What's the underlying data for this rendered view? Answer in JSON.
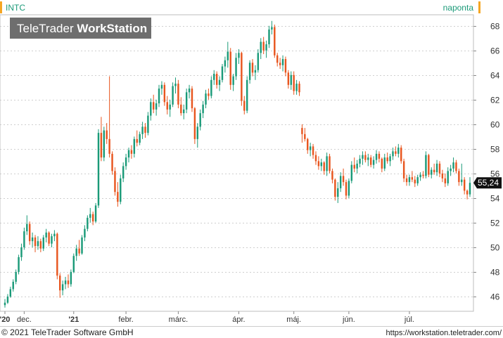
{
  "header": {
    "symbol": "INTC",
    "interval": "naponta",
    "watermark_light": "TeleTrader ",
    "watermark_bold": "WorkStation"
  },
  "footer": {
    "copyright": "© 2021 TeleTrader Software GmbH",
    "url": "https://workstation.teletrader.com/"
  },
  "colors": {
    "up": "#1a9a78",
    "down": "#e8551e",
    "accent": "#f5a623",
    "grid": "#cfcfcf",
    "price_tag_bg": "#111111"
  },
  "chart_data": {
    "type": "candlestick",
    "y_ticks": [
      46,
      48,
      50,
      52,
      54,
      56,
      58,
      60,
      62,
      64,
      66,
      68
    ],
    "ylim": [
      44.8,
      68.9
    ],
    "last_price": 55.24,
    "last_price_label": "55,24",
    "x_labels": [
      {
        "label": "'20",
        "bold": true,
        "index": 0
      },
      {
        "label": "dec.",
        "bold": false,
        "index": 7
      },
      {
        "label": "'21",
        "bold": true,
        "index": 25
      },
      {
        "label": "febr.",
        "bold": false,
        "index": 44
      },
      {
        "label": "márc.",
        "bold": false,
        "index": 63
      },
      {
        "label": "ápr.",
        "bold": false,
        "index": 85
      },
      {
        "label": "máj.",
        "bold": false,
        "index": 105
      },
      {
        "label": "jún.",
        "bold": false,
        "index": 125
      },
      {
        "label": "júl.",
        "bold": false,
        "index": 147
      }
    ],
    "candles": [
      [
        45.3,
        45.8,
        45.1,
        45.5
      ],
      [
        45.5,
        46.2,
        45.4,
        46.0
      ],
      [
        46.0,
        46.8,
        45.9,
        46.6
      ],
      [
        46.6,
        47.4,
        46.4,
        47.2
      ],
      [
        47.2,
        48.2,
        47.0,
        48.0
      ],
      [
        48.0,
        49.4,
        47.8,
        49.2
      ],
      [
        49.2,
        50.3,
        48.9,
        50.0
      ],
      [
        50.0,
        51.6,
        49.8,
        51.3
      ],
      [
        51.3,
        52.6,
        51.0,
        51.9
      ],
      [
        51.9,
        52.1,
        50.2,
        50.5
      ],
      [
        50.5,
        51.2,
        50.0,
        50.8
      ],
      [
        50.8,
        51.0,
        49.6,
        50.1
      ],
      [
        50.1,
        50.9,
        49.8,
        50.5
      ],
      [
        50.5,
        50.7,
        49.6,
        49.9
      ],
      [
        49.9,
        51.0,
        49.7,
        50.8
      ],
      [
        50.8,
        51.5,
        50.4,
        51.2
      ],
      [
        51.2,
        51.3,
        50.1,
        50.3
      ],
      [
        50.3,
        51.1,
        50.0,
        50.9
      ],
      [
        50.9,
        51.4,
        50.5,
        51.1
      ],
      [
        51.1,
        51.2,
        47.4,
        47.7
      ],
      [
        47.7,
        47.9,
        45.9,
        46.5
      ],
      [
        46.5,
        47.3,
        46.1,
        47.0
      ],
      [
        47.0,
        47.6,
        46.6,
        47.3
      ],
      [
        47.3,
        47.8,
        46.7,
        47.0
      ],
      [
        47.0,
        48.2,
        46.8,
        48.0
      ],
      [
        48.0,
        49.5,
        47.9,
        49.3
      ],
      [
        49.3,
        50.2,
        48.9,
        49.9
      ],
      [
        49.9,
        50.6,
        49.3,
        49.5
      ],
      [
        49.5,
        51.0,
        49.4,
        50.8
      ],
      [
        50.8,
        51.8,
        50.5,
        51.5
      ],
      [
        51.5,
        52.6,
        51.3,
        52.4
      ],
      [
        52.4,
        53.2,
        52.0,
        52.7
      ],
      [
        52.7,
        52.9,
        51.8,
        52.1
      ],
      [
        52.1,
        53.6,
        52.0,
        53.4
      ],
      [
        53.4,
        59.6,
        53.2,
        59.3
      ],
      [
        59.3,
        60.6,
        57.0,
        57.3
      ],
      [
        57.3,
        59.8,
        57.0,
        59.5
      ],
      [
        59.5,
        60.1,
        58.4,
        58.8
      ],
      [
        58.8,
        63.9,
        57.3,
        57.6
      ],
      [
        57.6,
        57.8,
        55.9,
        56.2
      ],
      [
        56.2,
        56.5,
        54.2,
        54.5
      ],
      [
        54.5,
        55.3,
        53.3,
        53.7
      ],
      [
        53.7,
        55.9,
        53.5,
        55.6
      ],
      [
        55.6,
        56.9,
        55.3,
        56.6
      ],
      [
        56.6,
        57.6,
        56.3,
        57.3
      ],
      [
        57.3,
        58.1,
        56.9,
        57.9
      ],
      [
        57.9,
        58.3,
        57.2,
        57.6
      ],
      [
        57.6,
        59.0,
        57.3,
        58.8
      ],
      [
        58.8,
        59.5,
        58.2,
        58.5
      ],
      [
        58.5,
        59.4,
        58.3,
        59.2
      ],
      [
        59.2,
        60.2,
        58.8,
        59.8
      ],
      [
        59.8,
        60.1,
        58.9,
        59.3
      ],
      [
        59.3,
        61.0,
        59.1,
        60.7
      ],
      [
        60.7,
        62.1,
        60.3,
        61.8
      ],
      [
        61.8,
        62.4,
        60.9,
        61.2
      ],
      [
        61.2,
        62.0,
        60.7,
        61.7
      ],
      [
        61.7,
        63.2,
        61.4,
        62.9
      ],
      [
        62.9,
        63.5,
        62.4,
        63.2
      ],
      [
        63.2,
        63.4,
        61.5,
        61.8
      ],
      [
        61.8,
        62.3,
        60.8,
        61.2
      ],
      [
        61.2,
        62.0,
        60.6,
        61.6
      ],
      [
        61.6,
        63.4,
        61.4,
        63.1
      ],
      [
        63.1,
        63.8,
        62.5,
        63.3
      ],
      [
        63.3,
        63.6,
        61.3,
        61.6
      ],
      [
        61.6,
        62.2,
        60.7,
        60.9
      ],
      [
        60.9,
        61.6,
        60.4,
        61.2
      ],
      [
        61.2,
        62.9,
        60.9,
        62.6
      ],
      [
        62.6,
        63.2,
        62.1,
        62.9
      ],
      [
        62.9,
        63.1,
        61.0,
        61.3
      ],
      [
        61.3,
        61.4,
        58.4,
        58.8
      ],
      [
        58.8,
        60.1,
        58.1,
        59.8
      ],
      [
        59.8,
        61.2,
        59.5,
        60.9
      ],
      [
        60.9,
        61.9,
        60.5,
        61.6
      ],
      [
        61.6,
        62.8,
        61.3,
        62.5
      ],
      [
        62.5,
        62.9,
        62.0,
        62.3
      ],
      [
        62.3,
        63.9,
        62.1,
        63.6
      ],
      [
        63.6,
        64.4,
        63.2,
        64.1
      ],
      [
        64.1,
        64.3,
        62.9,
        63.2
      ],
      [
        63.2,
        63.9,
        62.7,
        63.6
      ],
      [
        63.6,
        64.9,
        63.4,
        64.7
      ],
      [
        64.7,
        65.5,
        64.2,
        65.2
      ],
      [
        65.2,
        66.7,
        64.6,
        65.9
      ],
      [
        65.9,
        66.2,
        62.8,
        63.2
      ],
      [
        63.2,
        64.1,
        62.7,
        63.9
      ],
      [
        63.9,
        65.8,
        63.6,
        65.4
      ],
      [
        65.4,
        66.1,
        64.9,
        65.8
      ],
      [
        65.8,
        65.9,
        61.5,
        61.9
      ],
      [
        61.9,
        62.3,
        60.8,
        61.1
      ],
      [
        61.1,
        63.9,
        60.9,
        63.6
      ],
      [
        63.6,
        65.2,
        63.3,
        65.0
      ],
      [
        65.0,
        65.3,
        63.9,
        64.2
      ],
      [
        64.2,
        64.8,
        63.6,
        64.4
      ],
      [
        64.4,
        66.1,
        64.2,
        65.8
      ],
      [
        65.8,
        67.0,
        65.3,
        66.7
      ],
      [
        66.7,
        67.1,
        65.7,
        66.0
      ],
      [
        66.0,
        66.8,
        65.4,
        66.5
      ],
      [
        66.5,
        68.0,
        66.2,
        67.7
      ],
      [
        67.7,
        68.4,
        67.3,
        67.9
      ],
      [
        67.9,
        68.1,
        65.4,
        65.6
      ],
      [
        65.6,
        65.8,
        64.7,
        65.0
      ],
      [
        65.0,
        65.4,
        64.5,
        64.8
      ],
      [
        64.8,
        65.6,
        64.3,
        65.3
      ],
      [
        65.3,
        65.5,
        63.9,
        64.2
      ],
      [
        64.2,
        64.4,
        62.9,
        63.2
      ],
      [
        63.2,
        64.3,
        62.8,
        64.0
      ],
      [
        64.0,
        64.3,
        62.4,
        62.7
      ],
      [
        62.7,
        63.6,
        62.4,
        63.3
      ],
      [
        63.3,
        63.5,
        62.3,
        62.6
      ],
      [
        59.7,
        60.0,
        58.5,
        59.2
      ],
      [
        59.2,
        59.7,
        58.6,
        58.8
      ],
      [
        58.8,
        58.9,
        57.6,
        57.9
      ],
      [
        57.9,
        58.5,
        57.4,
        58.2
      ],
      [
        58.2,
        58.4,
        57.2,
        57.5
      ],
      [
        57.5,
        57.8,
        56.7,
        57.0
      ],
      [
        57.0,
        57.4,
        56.3,
        56.6
      ],
      [
        56.6,
        57.2,
        56.2,
        56.9
      ],
      [
        56.9,
        57.0,
        55.9,
        56.2
      ],
      [
        56.2,
        57.7,
        55.8,
        57.4
      ],
      [
        57.4,
        57.6,
        56.0,
        56.2
      ],
      [
        56.2,
        56.4,
        55.2,
        55.5
      ],
      [
        55.5,
        55.6,
        53.8,
        54.1
      ],
      [
        54.1,
        55.3,
        53.6,
        54.8
      ],
      [
        54.8,
        56.1,
        54.5,
        55.8
      ],
      [
        55.8,
        56.4,
        55.0,
        55.3
      ],
      [
        55.3,
        55.5,
        53.9,
        54.2
      ],
      [
        54.2,
        55.6,
        54.0,
        55.4
      ],
      [
        55.4,
        57.0,
        55.2,
        56.7
      ],
      [
        56.7,
        57.3,
        56.1,
        56.4
      ],
      [
        56.4,
        57.1,
        56.0,
        56.8
      ],
      [
        56.8,
        57.5,
        56.5,
        57.2
      ],
      [
        57.2,
        57.8,
        56.7,
        57.5
      ],
      [
        57.5,
        57.8,
        56.9,
        57.1
      ],
      [
        57.1,
        57.6,
        56.6,
        57.3
      ],
      [
        57.3,
        57.5,
        56.5,
        56.7
      ],
      [
        56.7,
        57.4,
        56.4,
        57.1
      ],
      [
        57.1,
        57.9,
        56.8,
        57.6
      ],
      [
        57.6,
        57.8,
        56.9,
        57.2
      ],
      [
        57.2,
        57.3,
        56.1,
        56.4
      ],
      [
        56.4,
        57.6,
        56.2,
        57.3
      ],
      [
        57.3,
        57.7,
        56.8,
        57.0
      ],
      [
        57.0,
        57.6,
        56.6,
        57.4
      ],
      [
        57.4,
        58.1,
        57.1,
        57.8
      ],
      [
        57.8,
        58.2,
        57.4,
        57.6
      ],
      [
        57.6,
        58.4,
        57.3,
        58.1
      ],
      [
        58.1,
        58.3,
        56.8,
        57.0
      ],
      [
        57.0,
        57.2,
        55.3,
        55.6
      ],
      [
        55.6,
        55.9,
        55.0,
        55.3
      ],
      [
        55.3,
        55.9,
        55.0,
        55.7
      ],
      [
        55.7,
        56.2,
        55.3,
        55.5
      ],
      [
        55.5,
        55.8,
        54.9,
        55.2
      ],
      [
        55.2,
        55.9,
        55.0,
        55.7
      ],
      [
        55.7,
        56.1,
        55.4,
        55.9
      ],
      [
        55.9,
        56.2,
        55.6,
        55.8
      ],
      [
        55.8,
        57.8,
        55.6,
        57.5
      ],
      [
        57.5,
        57.6,
        55.7,
        55.9
      ],
      [
        55.9,
        56.5,
        55.6,
        56.3
      ],
      [
        56.3,
        56.8,
        55.9,
        56.1
      ],
      [
        56.1,
        57.1,
        55.8,
        56.8
      ],
      [
        56.8,
        57.0,
        55.7,
        56.0
      ],
      [
        56.0,
        56.3,
        55.3,
        55.6
      ],
      [
        55.6,
        56.0,
        54.9,
        55.2
      ],
      [
        55.2,
        56.5,
        55.0,
        56.2
      ],
      [
        56.2,
        56.7,
        55.8,
        56.4
      ],
      [
        56.4,
        57.3,
        56.1,
        56.9
      ],
      [
        56.9,
        57.1,
        56.0,
        56.2
      ],
      [
        56.2,
        56.4,
        55.0,
        55.3
      ],
      [
        55.3,
        56.8,
        55.0,
        55.5
      ],
      [
        55.5,
        55.7,
        54.3,
        54.6
      ],
      [
        54.6,
        54.7,
        53.9,
        54.3
      ],
      [
        54.3,
        55.7,
        54.1,
        55.24
      ]
    ]
  }
}
